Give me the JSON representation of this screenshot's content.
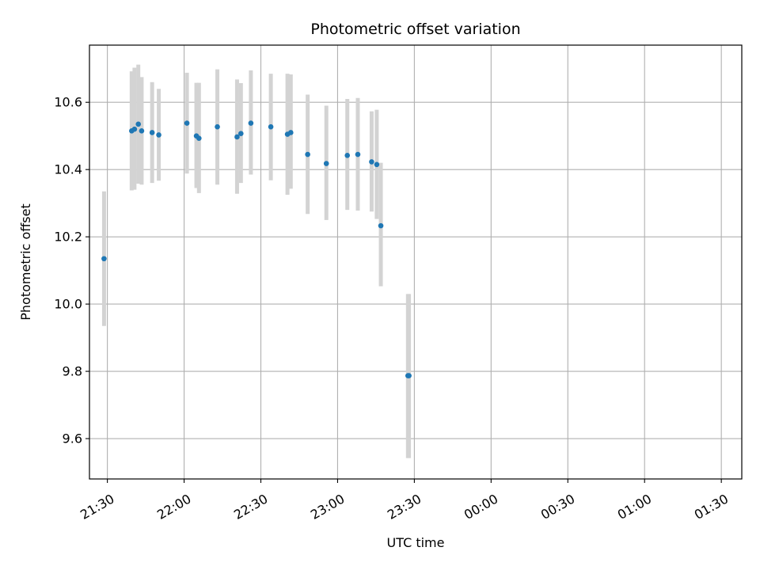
{
  "chart_data": {
    "type": "scatter",
    "title": "Photometric offset variation",
    "xlabel": "UTC time",
    "ylabel": "Photometric offset",
    "grid": true,
    "x_ticks": [
      "21:30",
      "22:00",
      "22:30",
      "23:00",
      "23:30",
      "00:00",
      "00:30",
      "01:00",
      "01:30"
    ],
    "x_tick_minutes": [
      0,
      30,
      60,
      90,
      120,
      150,
      180,
      210,
      240
    ],
    "y_ticks": [
      9.6,
      9.8,
      10.0,
      10.2,
      10.4,
      10.6
    ],
    "xlim_minutes": [
      -7,
      248
    ],
    "ylim": [
      9.48,
      10.77
    ],
    "marker_color": "#1f77b4",
    "errorbar_color": "#d3d3d3",
    "series": [
      {
        "x_minutes": [
          -1.3,
          9.5,
          10.6,
          12.1,
          13.4,
          17.5,
          20.1,
          31.1,
          34.8,
          35.8,
          43.0,
          50.7,
          52.2,
          56.1,
          63.9,
          70.4,
          71.7,
          78.3,
          85.6,
          93.8,
          97.9,
          103.3,
          105.3,
          106.9,
          117.5,
          117.9
        ],
        "y": [
          10.135,
          10.515,
          10.52,
          10.535,
          10.515,
          10.51,
          10.503,
          10.538,
          10.5,
          10.493,
          10.527,
          10.497,
          10.507,
          10.538,
          10.527,
          10.505,
          10.51,
          10.445,
          10.418,
          10.442,
          10.445,
          10.423,
          10.415,
          10.233,
          9.787,
          9.787
        ],
        "err_low": [
          9.935,
          10.338,
          10.34,
          10.358,
          10.355,
          10.36,
          10.367,
          10.388,
          10.345,
          10.33,
          10.355,
          10.328,
          10.36,
          10.385,
          10.368,
          10.325,
          10.343,
          10.268,
          10.25,
          10.28,
          10.278,
          10.275,
          10.253,
          10.053,
          9.542,
          9.542
        ],
        "err_high": [
          10.335,
          10.692,
          10.703,
          10.712,
          10.675,
          10.66,
          10.64,
          10.688,
          10.658,
          10.658,
          10.698,
          10.668,
          10.657,
          10.695,
          10.685,
          10.685,
          10.683,
          10.623,
          10.59,
          10.61,
          10.613,
          10.573,
          10.578,
          10.42,
          10.03,
          10.03
        ]
      }
    ]
  }
}
